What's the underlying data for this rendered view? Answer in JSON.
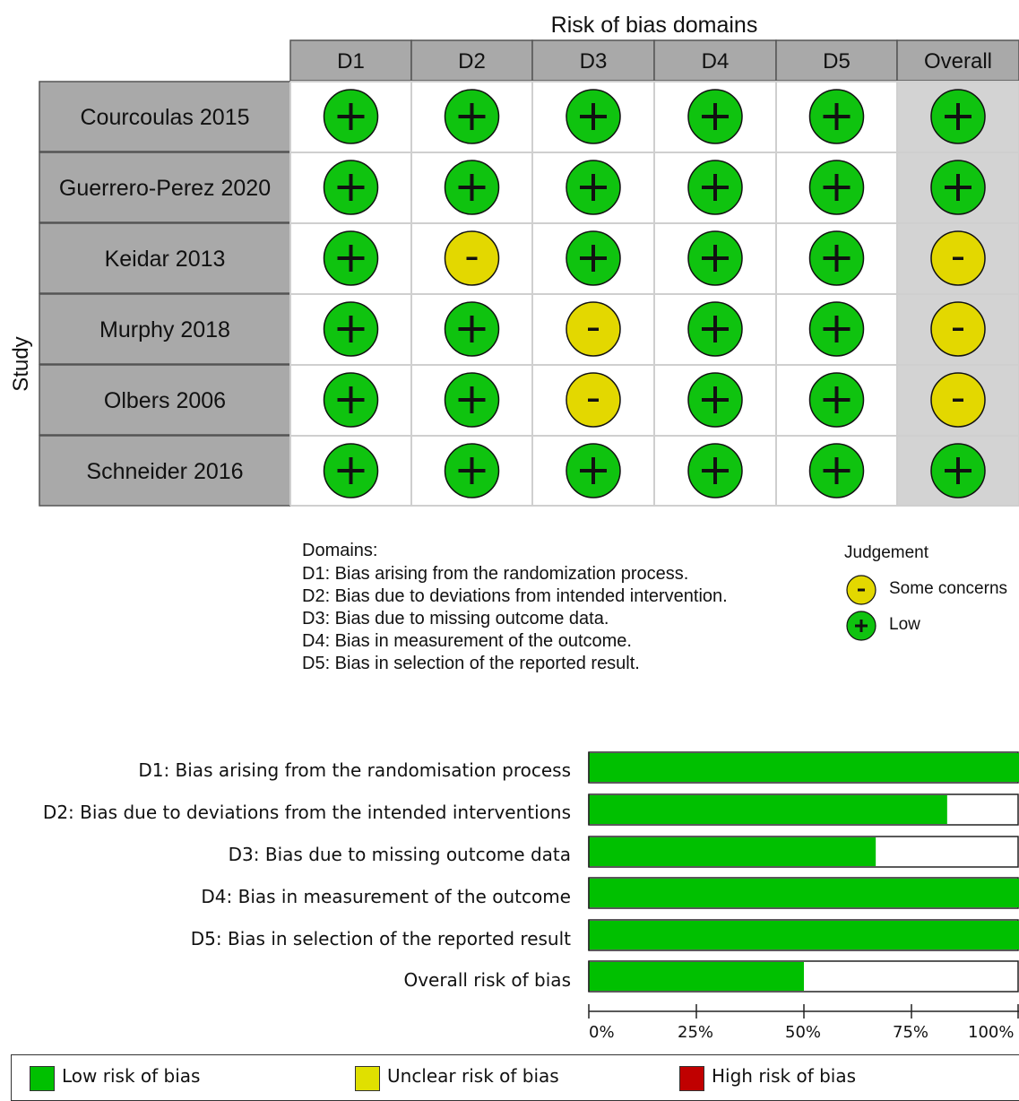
{
  "traffic_light": {
    "title": "Risk of bias domains",
    "y_axis_label": "Study",
    "columns": [
      "D1",
      "D2",
      "D3",
      "D4",
      "D5",
      "Overall"
    ],
    "studies": [
      {
        "name": "Courcoulas 2015",
        "judgements": [
          "+",
          "+",
          "+",
          "+",
          "+",
          "+"
        ]
      },
      {
        "name": "Guerrero-Perez 2020",
        "judgements": [
          "+",
          "+",
          "+",
          "+",
          "+",
          "+"
        ]
      },
      {
        "name": "Keidar 2013",
        "judgements": [
          "+",
          "-",
          "+",
          "+",
          "+",
          "-"
        ]
      },
      {
        "name": "Murphy 2018",
        "judgements": [
          "+",
          "+",
          "-",
          "+",
          "+",
          "-"
        ]
      },
      {
        "name": "Olbers 2006",
        "judgements": [
          "+",
          "+",
          "-",
          "+",
          "+",
          "-"
        ]
      },
      {
        "name": "Schneider 2016",
        "judgements": [
          "+",
          "+",
          "+",
          "+",
          "+",
          "+"
        ]
      }
    ],
    "domains_title": "Domains:",
    "domains": [
      "D1: Bias arising from the randomization process.",
      "D2: Bias due to deviations from intended intervention.",
      "D3: Bias due to missing outcome data.",
      "D4: Bias in measurement of the outcome.",
      "D5: Bias in selection of the reported result."
    ],
    "judgement_title": "Judgement",
    "judgement_items": [
      {
        "symbol": "-",
        "label": "Some concerns",
        "color": "#e3d800"
      },
      {
        "symbol": "+",
        "label": "Low",
        "color": "#0fc30f"
      }
    ]
  },
  "chart_data": {
    "type": "bar",
    "orientation": "horizontal",
    "stacked": true,
    "categories": [
      "D1: Bias arising from the randomisation process",
      "D2: Bias due to deviations from the intended interventions",
      "D3: Bias due to missing outcome data",
      "D4: Bias in measurement of the outcome",
      "D5: Bias in selection of the reported result",
      "Overall risk of bias"
    ],
    "series": [
      {
        "name": "Low risk of bias",
        "color": "#00c000",
        "values": [
          100,
          83.3,
          66.7,
          100,
          100,
          50
        ]
      },
      {
        "name": "Unclear risk of bias",
        "color": "#e0e000",
        "values": [
          0,
          0,
          0,
          0,
          0,
          0
        ]
      },
      {
        "name": "High risk of bias",
        "color": "#c00000",
        "values": [
          0,
          0,
          0,
          0,
          0,
          0
        ]
      }
    ],
    "xlim": [
      0,
      100
    ],
    "xticks": [
      "0%",
      "25%",
      "50%",
      "75%",
      "100%"
    ],
    "legend_position": "bottom"
  },
  "colors": {
    "low": "#0fc30f",
    "some_concerns": "#e3d800",
    "header_fill": "#a9a9a9",
    "overall_fill": "#d3d3d3"
  }
}
